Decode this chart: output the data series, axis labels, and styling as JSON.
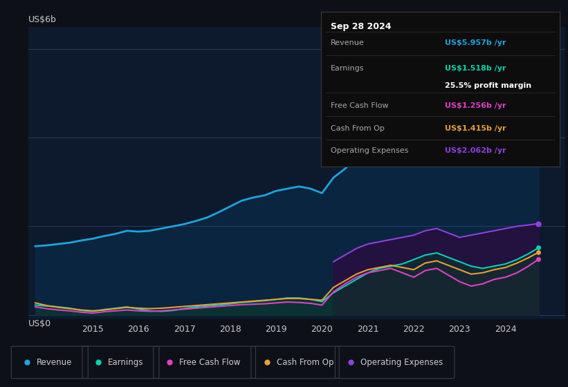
{
  "bg_color": "#0d1117",
  "plot_bg_color": "#0d1a2d",
  "grid_color": "#253a5e",
  "text_color": "#cccccc",
  "ylabel_text": "US$6b",
  "ylabel_bottom": "US$0",
  "x_ticks": [
    2015,
    2016,
    2017,
    2018,
    2019,
    2020,
    2021,
    2022,
    2023,
    2024
  ],
  "x_min": 2013.6,
  "x_max": 2025.3,
  "y_min": -0.1,
  "y_max": 6.5,
  "revenue_color": "#1ea4e0",
  "earnings_color": "#00d4b0",
  "fcf_color": "#e040c8",
  "cashfromop_color": "#e8a030",
  "opex_color": "#9040e0",
  "years": [
    2013.75,
    2014.0,
    2014.25,
    2014.5,
    2014.75,
    2015.0,
    2015.25,
    2015.5,
    2015.75,
    2016.0,
    2016.25,
    2016.5,
    2016.75,
    2017.0,
    2017.25,
    2017.5,
    2017.75,
    2018.0,
    2018.25,
    2018.5,
    2018.75,
    2019.0,
    2019.25,
    2019.5,
    2019.75,
    2020.0,
    2020.25,
    2020.5,
    2020.75,
    2021.0,
    2021.25,
    2021.5,
    2021.75,
    2022.0,
    2022.25,
    2022.5,
    2022.75,
    2023.0,
    2023.25,
    2023.5,
    2023.75,
    2024.0,
    2024.25,
    2024.5,
    2024.72
  ],
  "revenue": [
    1.55,
    1.57,
    1.6,
    1.63,
    1.68,
    1.72,
    1.78,
    1.83,
    1.9,
    1.88,
    1.9,
    1.95,
    2.0,
    2.05,
    2.12,
    2.2,
    2.32,
    2.45,
    2.58,
    2.65,
    2.7,
    2.8,
    2.85,
    2.9,
    2.85,
    2.75,
    3.1,
    3.3,
    3.55,
    3.85,
    4.1,
    4.35,
    4.55,
    4.8,
    5.1,
    5.3,
    5.15,
    5.0,
    4.9,
    4.95,
    5.1,
    5.2,
    5.45,
    5.7,
    5.957
  ],
  "earnings": [
    0.22,
    0.2,
    0.18,
    0.15,
    0.1,
    0.08,
    0.12,
    0.15,
    0.18,
    0.13,
    0.09,
    0.08,
    0.1,
    0.14,
    0.18,
    0.2,
    0.22,
    0.25,
    0.28,
    0.3,
    0.32,
    0.35,
    0.38,
    0.38,
    0.35,
    0.3,
    0.5,
    0.65,
    0.8,
    0.95,
    1.05,
    1.1,
    1.15,
    1.25,
    1.35,
    1.4,
    1.3,
    1.2,
    1.1,
    1.05,
    1.1,
    1.15,
    1.25,
    1.38,
    1.518
  ],
  "fcf": [
    0.18,
    0.14,
    0.11,
    0.09,
    0.06,
    0.04,
    0.07,
    0.09,
    0.11,
    0.09,
    0.08,
    0.09,
    0.11,
    0.13,
    0.15,
    0.17,
    0.19,
    0.21,
    0.23,
    0.24,
    0.25,
    0.27,
    0.29,
    0.28,
    0.26,
    0.22,
    0.52,
    0.7,
    0.85,
    0.95,
    1.0,
    1.05,
    0.95,
    0.85,
    1.0,
    1.05,
    0.9,
    0.75,
    0.65,
    0.7,
    0.8,
    0.85,
    0.95,
    1.1,
    1.256
  ],
  "cashfromop": [
    0.27,
    0.21,
    0.17,
    0.14,
    0.11,
    0.09,
    0.11,
    0.14,
    0.17,
    0.15,
    0.14,
    0.15,
    0.17,
    0.19,
    0.21,
    0.23,
    0.25,
    0.27,
    0.29,
    0.31,
    0.33,
    0.35,
    0.37,
    0.37,
    0.35,
    0.33,
    0.62,
    0.77,
    0.92,
    1.02,
    1.07,
    1.12,
    1.07,
    1.02,
    1.17,
    1.22,
    1.12,
    1.02,
    0.92,
    0.95,
    1.02,
    1.07,
    1.17,
    1.29,
    1.415
  ],
  "opex": [
    0.0,
    0.0,
    0.0,
    0.0,
    0.0,
    0.0,
    0.0,
    0.0,
    0.0,
    0.0,
    0.0,
    0.0,
    0.0,
    0.0,
    0.0,
    0.0,
    0.0,
    0.0,
    0.0,
    0.0,
    0.0,
    0.0,
    0.0,
    0.0,
    0.0,
    0.0,
    1.2,
    1.35,
    1.5,
    1.6,
    1.65,
    1.7,
    1.75,
    1.8,
    1.9,
    1.95,
    1.85,
    1.75,
    1.8,
    1.85,
    1.9,
    1.95,
    2.0,
    2.03,
    2.062
  ],
  "tooltip_date": "Sep 28 2024",
  "tooltip_revenue_val": "US$5.957b",
  "tooltip_earnings_val": "US$1.518b",
  "tooltip_margin": "25.5%",
  "tooltip_fcf_val": "US$1.256b",
  "tooltip_cashop_val": "US$1.415b",
  "tooltip_opex_val": "US$2.062b",
  "legend_items": [
    "Revenue",
    "Earnings",
    "Free Cash Flow",
    "Cash From Op",
    "Operating Expenses"
  ],
  "legend_colors": [
    "#1ea4e0",
    "#00d4b0",
    "#e040c8",
    "#e8a030",
    "#9040e0"
  ]
}
